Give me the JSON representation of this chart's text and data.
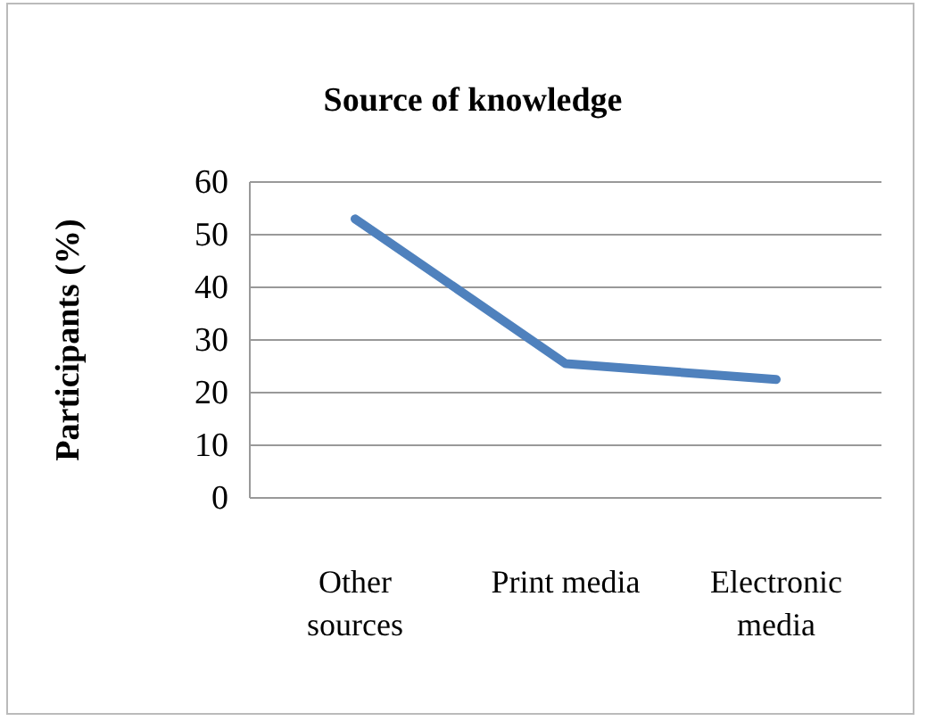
{
  "chart_data": {
    "type": "line",
    "title": "Source of knowledge",
    "ylabel": "Participants (%)",
    "categories": [
      "Other sources",
      "Print media",
      "Electronic media"
    ],
    "series": [
      {
        "color": "#4f81bd",
        "values": [
          53,
          25.5,
          22.5
        ]
      }
    ],
    "ylim": [
      0,
      60
    ],
    "yticks": [
      0,
      10,
      20,
      30,
      40,
      50,
      60
    ],
    "grid": "y",
    "marker": "none",
    "line_style": "solid"
  }
}
